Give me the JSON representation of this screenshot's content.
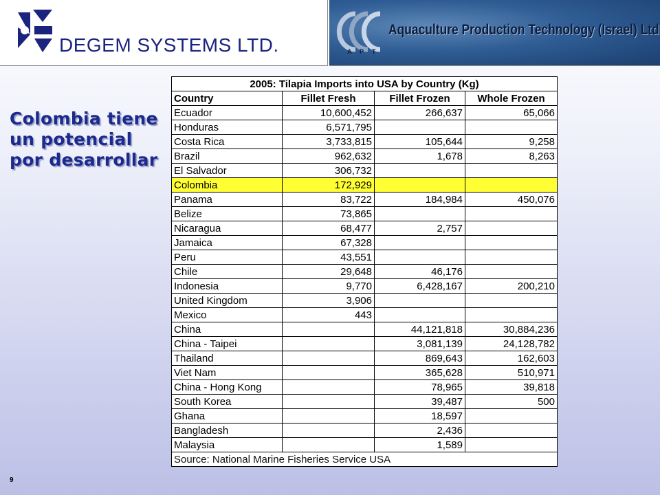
{
  "header": {
    "company_name": "DEGEM SYSTEMS LTD.",
    "partner_name": "Aquaculture Production Technology (Israel) Ltd."
  },
  "side_heading": "Colombia tiene un potencial por desarrollar",
  "table": {
    "title": "2005: Tilapia Imports into USA by Country (Kg)",
    "columns": [
      "Country",
      "Fillet Fresh",
      "Fillet Frozen",
      "Whole Frozen"
    ],
    "rows": [
      {
        "country": "Ecuador",
        "fillet_fresh": "10,600,452",
        "fillet_frozen": "266,637",
        "whole_frozen": "65,066"
      },
      {
        "country": "Honduras",
        "fillet_fresh": "6,571,795",
        "fillet_frozen": "",
        "whole_frozen": ""
      },
      {
        "country": "Costa Rica",
        "fillet_fresh": "3,733,815",
        "fillet_frozen": "105,644",
        "whole_frozen": "9,258"
      },
      {
        "country": "Brazil",
        "fillet_fresh": "962,632",
        "fillet_frozen": "1,678",
        "whole_frozen": "8,263"
      },
      {
        "country": "El Salvador",
        "fillet_fresh": "306,732",
        "fillet_frozen": "",
        "whole_frozen": ""
      },
      {
        "country": "Colombia",
        "fillet_fresh": "172,929",
        "fillet_frozen": "",
        "whole_frozen": "",
        "highlight": true
      },
      {
        "country": "Panama",
        "fillet_fresh": "83,722",
        "fillet_frozen": "184,984",
        "whole_frozen": "450,076"
      },
      {
        "country": "Belize",
        "fillet_fresh": "73,865",
        "fillet_frozen": "",
        "whole_frozen": ""
      },
      {
        "country": "Nicaragua",
        "fillet_fresh": "68,477",
        "fillet_frozen": "2,757",
        "whole_frozen": ""
      },
      {
        "country": "Jamaica",
        "fillet_fresh": "67,328",
        "fillet_frozen": "",
        "whole_frozen": ""
      },
      {
        "country": "Peru",
        "fillet_fresh": "43,551",
        "fillet_frozen": "",
        "whole_frozen": ""
      },
      {
        "country": "Chile",
        "fillet_fresh": "29,648",
        "fillet_frozen": "46,176",
        "whole_frozen": ""
      },
      {
        "country": "Indonesia",
        "fillet_fresh": "9,770",
        "fillet_frozen": "6,428,167",
        "whole_frozen": "200,210"
      },
      {
        "country": "United Kingdom",
        "fillet_fresh": "3,906",
        "fillet_frozen": "",
        "whole_frozen": ""
      },
      {
        "country": "Mexico",
        "fillet_fresh": "443",
        "fillet_frozen": "",
        "whole_frozen": ""
      },
      {
        "country": "China",
        "fillet_fresh": "",
        "fillet_frozen": "44,121,818",
        "whole_frozen": "30,884,236"
      },
      {
        "country": "China - Taipei",
        "fillet_fresh": "",
        "fillet_frozen": "3,081,139",
        "whole_frozen": "24,128,782"
      },
      {
        "country": "Thailand",
        "fillet_fresh": "",
        "fillet_frozen": "869,643",
        "whole_frozen": "162,603"
      },
      {
        "country": "Viet Nam",
        "fillet_fresh": "",
        "fillet_frozen": "365,628",
        "whole_frozen": "510,971"
      },
      {
        "country": "China - Hong Kong",
        "fillet_fresh": "",
        "fillet_frozen": "78,965",
        "whole_frozen": "39,818"
      },
      {
        "country": "South Korea",
        "fillet_fresh": "",
        "fillet_frozen": "39,487",
        "whole_frozen": "500"
      },
      {
        "country": "Ghana",
        "fillet_fresh": "",
        "fillet_frozen": "18,597",
        "whole_frozen": ""
      },
      {
        "country": "Bangladesh",
        "fillet_fresh": "",
        "fillet_frozen": "2,436",
        "whole_frozen": ""
      },
      {
        "country": "Malaysia",
        "fillet_fresh": "",
        "fillet_frozen": "1,589",
        "whole_frozen": ""
      }
    ],
    "source": "Source: National Marine Fisheries Service USA",
    "highlight_color": "#ffff33"
  },
  "page_number": "9",
  "icons": {
    "degem_logo": "degem-logo-icon",
    "apt_logo": "apt-logo-icon"
  },
  "colors": {
    "heading": "#1c2a8c",
    "company_text": "#1a237e",
    "banner": "#2f5d94"
  }
}
